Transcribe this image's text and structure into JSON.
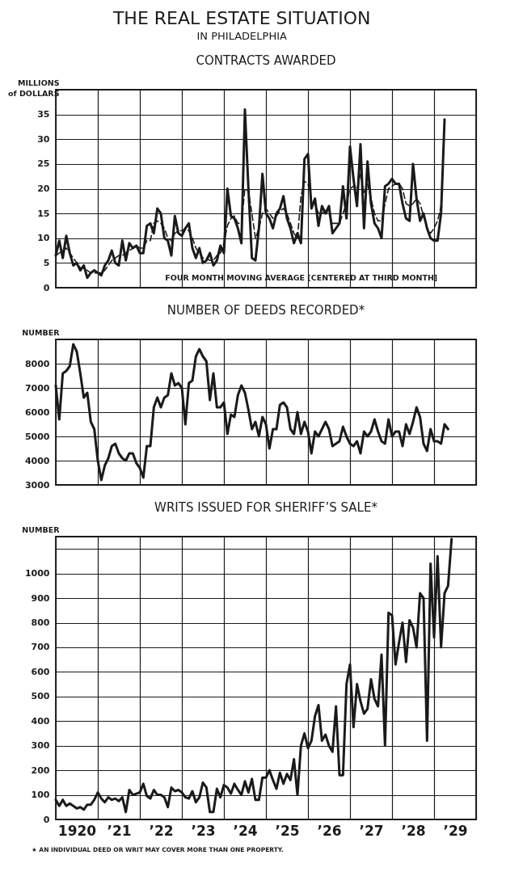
{
  "chart_data": [
    {
      "type": "line",
      "title": "CONTRACTS AWARDED",
      "ylabel": "MILLIONS of DOLLARS",
      "annotations": [
        "THE REAL ESTATE SITUATION",
        "IN PHILADELPHIA"
      ],
      "x": [
        "1920-01",
        "1920-02",
        "1920-03",
        "1920-04",
        "1920-05",
        "1920-06",
        "1920-07",
        "1920-08",
        "1920-09",
        "1920-10",
        "1920-11",
        "1920-12",
        "1921-01",
        "1921-02",
        "1921-03",
        "1921-04",
        "1921-05",
        "1921-06",
        "1921-07",
        "1921-08",
        "1921-09",
        "1921-10",
        "1921-11",
        "1921-12",
        "1922-01",
        "1922-02",
        "1922-03",
        "1922-04",
        "1922-05",
        "1922-06",
        "1922-07",
        "1922-08",
        "1922-09",
        "1922-10",
        "1922-11",
        "1922-12",
        "1923-01",
        "1923-02",
        "1923-03",
        "1923-04",
        "1923-05",
        "1923-06",
        "1923-07",
        "1923-08",
        "1923-09",
        "1923-10",
        "1923-11",
        "1923-12",
        "1924-01",
        "1924-02",
        "1924-03",
        "1924-04",
        "1924-05",
        "1924-06",
        "1924-07",
        "1924-08",
        "1924-09",
        "1924-10",
        "1924-11",
        "1924-12",
        "1925-01",
        "1925-02",
        "1925-03",
        "1925-04",
        "1925-05",
        "1925-06",
        "1925-07",
        "1925-08",
        "1925-09",
        "1925-10",
        "1925-11",
        "1925-12",
        "1926-01",
        "1926-02",
        "1926-03",
        "1926-04",
        "1926-05",
        "1926-06",
        "1926-07",
        "1926-08",
        "1926-09",
        "1926-10",
        "1926-11",
        "1926-12",
        "1927-01",
        "1927-02",
        "1927-03",
        "1927-04",
        "1927-05",
        "1927-06",
        "1927-07",
        "1927-08",
        "1927-09",
        "1927-10",
        "1927-11",
        "1927-12",
        "1928-01",
        "1928-02",
        "1928-03",
        "1928-04",
        "1928-05",
        "1928-06",
        "1928-07",
        "1928-08",
        "1928-09",
        "1928-10",
        "1928-11",
        "1928-12",
        "1929-01",
        "1929-02",
        "1929-03",
        "1929-04"
      ],
      "series": [
        {
          "color": "#1a1a1a",
          "line_style": "solid",
          "values": [
            6.5,
            9.5,
            6,
            10.5,
            7,
            4.5,
            5,
            3.5,
            4.5,
            2,
            3,
            3.5,
            3,
            2.5,
            4.5,
            5.5,
            7.5,
            5,
            4.5,
            9.5,
            5.5,
            9,
            8,
            8.5,
            7,
            7,
            12.5,
            13,
            11,
            16,
            15,
            10,
            9.5,
            6.5,
            14.5,
            11,
            10.5,
            12,
            13,
            8,
            6,
            8,
            5,
            5.5,
            7,
            4.5,
            5.5,
            8.5,
            7,
            20,
            14.5,
            14,
            12,
            9,
            36,
            20,
            6,
            5.5,
            12,
            23,
            15,
            14,
            12,
            15,
            16,
            18.5,
            14,
            12,
            9,
            11,
            9,
            26,
            27,
            16,
            18,
            12.5,
            16.5,
            15,
            16.5,
            11,
            12,
            13,
            20.5,
            14,
            28.5,
            22,
            16.5,
            29,
            12,
            25.5,
            17,
            13,
            12,
            10,
            20.5,
            21,
            22,
            21,
            21,
            17,
            14,
            13.5,
            25,
            18,
            13.5,
            15,
            12,
            10,
            9.5,
            9.5,
            15,
            34
          ]
        },
        {
          "name": "FOUR MONTH MOVING AVERAGE [CENTERED AT THIRD MONTH]",
          "color": "#1a1a1a",
          "line_style": "dashed",
          "values": [
            6.5,
            7,
            7.5,
            8,
            7,
            6,
            5,
            4,
            4,
            3.5,
            3,
            3,
            3,
            3,
            3.5,
            4.5,
            5.5,
            6,
            6.5,
            6.5,
            7,
            7.5,
            8,
            8.5,
            8,
            8,
            9.5,
            9.5,
            13,
            13.5,
            13,
            12,
            10,
            9.5,
            11,
            11.5,
            11.5,
            12,
            11.5,
            10,
            8,
            7,
            6,
            6,
            5.5,
            5.5,
            6.5,
            7,
            9,
            12.5,
            14,
            14.5,
            13,
            13,
            20,
            19.5,
            15,
            10,
            12,
            15,
            16,
            15,
            14,
            14.5,
            15.5,
            16,
            15,
            13,
            11,
            10,
            18.5,
            21.5,
            21,
            18,
            17,
            15,
            15,
            15.5,
            15,
            13,
            13,
            13,
            15,
            17,
            20,
            20.5,
            20,
            23,
            19,
            21,
            18,
            15,
            13.5,
            13.5,
            17,
            20,
            20.5,
            21,
            21,
            20,
            17,
            16.5,
            17,
            18,
            17,
            14.5,
            12,
            11,
            12,
            13.5,
            16.5,
            null
          ]
        }
      ],
      "xlim": [
        "1920-01",
        "1930-01"
      ],
      "xticks": [
        {
          "value": "1920-01",
          "label": null
        },
        {
          "value": "1921-01",
          "label": null
        },
        {
          "value": "1922-01",
          "label": null
        },
        {
          "value": "1923-01",
          "label": null
        },
        {
          "value": "1924-01",
          "label": null
        },
        {
          "value": "1925-01",
          "label": null
        },
        {
          "value": "1926-01",
          "label": null
        },
        {
          "value": "1927-01",
          "label": null
        },
        {
          "value": "1928-01",
          "label": null
        },
        {
          "value": "1929-01",
          "label": null
        },
        {
          "value": "1930-01",
          "label": null
        }
      ],
      "ylim": [
        0,
        40
      ],
      "yticks": [
        0,
        5,
        10,
        15,
        20,
        25,
        30,
        35
      ],
      "grid": true,
      "tick_labels": "y",
      "marker": "none"
    },
    {
      "type": "line",
      "title": "NUMBER OF DEEDS RECORDED*",
      "ylabel": "NUMBER",
      "x": [
        "1920-01",
        "1920-02",
        "1920-03",
        "1920-04",
        "1920-05",
        "1920-06",
        "1920-07",
        "1920-08",
        "1920-09",
        "1920-10",
        "1920-11",
        "1920-12",
        "1921-01",
        "1921-02",
        "1921-03",
        "1921-04",
        "1921-05",
        "1921-06",
        "1921-07",
        "1921-08",
        "1921-09",
        "1921-10",
        "1921-11",
        "1921-12",
        "1922-01",
        "1922-02",
        "1922-03",
        "1922-04",
        "1922-05",
        "1922-06",
        "1922-07",
        "1922-08",
        "1922-09",
        "1922-10",
        "1922-11",
        "1922-12",
        "1923-01",
        "1923-02",
        "1923-03",
        "1923-04",
        "1923-05",
        "1923-06",
        "1923-07",
        "1923-08",
        "1923-09",
        "1923-10",
        "1923-11",
        "1923-12",
        "1924-01",
        "1924-02",
        "1924-03",
        "1924-04",
        "1924-05",
        "1924-06",
        "1924-07",
        "1924-08",
        "1924-09",
        "1924-10",
        "1924-11",
        "1924-12",
        "1925-01",
        "1925-02",
        "1925-03",
        "1925-04",
        "1925-05",
        "1925-06",
        "1925-07",
        "1925-08",
        "1925-09",
        "1925-10",
        "1925-11",
        "1925-12",
        "1926-01",
        "1926-02",
        "1926-03",
        "1926-04",
        "1926-05",
        "1926-06",
        "1926-07",
        "1926-08",
        "1926-09",
        "1926-10",
        "1926-11",
        "1926-12",
        "1927-01",
        "1927-02",
        "1927-03",
        "1927-04",
        "1927-05",
        "1927-06",
        "1927-07",
        "1927-08",
        "1927-09",
        "1927-10",
        "1927-11",
        "1927-12",
        "1928-01",
        "1928-02",
        "1928-03",
        "1928-04",
        "1928-05",
        "1928-06",
        "1928-07",
        "1928-08",
        "1928-09",
        "1928-10",
        "1928-11",
        "1928-12",
        "1929-01",
        "1929-02",
        "1929-03",
        "1929-04",
        "1929-05"
      ],
      "series": [
        {
          "color": "#1a1a1a",
          "line_style": "solid",
          "values": [
            7100,
            5700,
            7600,
            7700,
            7900,
            8800,
            8500,
            7600,
            6600,
            6800,
            5600,
            5300,
            4000,
            3200,
            3800,
            4100,
            4600,
            4700,
            4300,
            4100,
            4000,
            4300,
            4300,
            3900,
            3700,
            3300,
            4600,
            4600,
            6200,
            6600,
            6200,
            6600,
            6700,
            7600,
            7100,
            7200,
            7000,
            5500,
            7200,
            7300,
            8300,
            8600,
            8300,
            8100,
            6500,
            7600,
            6200,
            6200,
            6400,
            5100,
            5900,
            5800,
            6700,
            7100,
            6800,
            6100,
            5300,
            5600,
            5000,
            5800,
            5500,
            4500,
            5300,
            5300,
            6300,
            6400,
            6200,
            5300,
            5100,
            6000,
            5100,
            5600,
            5200,
            4300,
            5200,
            5000,
            5300,
            5600,
            5300,
            4600,
            4700,
            4800,
            5400,
            5000,
            4700,
            4600,
            4800,
            4300,
            5200,
            5000,
            5200,
            5700,
            5200,
            4800,
            4700,
            5700,
            5000,
            5200,
            5200,
            4600,
            5500,
            5100,
            5600,
            6200,
            5800,
            4700,
            4400,
            5300,
            4800,
            4800,
            4700,
            5500,
            5300
          ]
        }
      ],
      "xlim": [
        "1920-01",
        "1930-01"
      ],
      "xticks": [
        {
          "value": "1920-01",
          "label": null
        },
        {
          "value": "1921-01",
          "label": null
        },
        {
          "value": "1922-01",
          "label": null
        },
        {
          "value": "1923-01",
          "label": null
        },
        {
          "value": "1924-01",
          "label": null
        },
        {
          "value": "1925-01",
          "label": null
        },
        {
          "value": "1926-01",
          "label": null
        },
        {
          "value": "1927-01",
          "label": null
        },
        {
          "value": "1928-01",
          "label": null
        },
        {
          "value": "1929-01",
          "label": null
        },
        {
          "value": "1930-01",
          "label": null
        }
      ],
      "ylim": [
        3000,
        9000
      ],
      "yticks": [
        3000,
        4000,
        5000,
        6000,
        7000,
        8000
      ],
      "grid": true,
      "tick_labels": "y",
      "marker": "none"
    },
    {
      "type": "line",
      "title": "WRITS ISSUED FOR SHERIFF’S SALE*",
      "ylabel": "NUMBER",
      "annotations": [
        "★ AN INDIVIDUAL DEED OR WRIT MAY COVER MORE THAN ONE PROPERTY."
      ],
      "x": [
        "1920-01",
        "1920-02",
        "1920-03",
        "1920-04",
        "1920-05",
        "1920-06",
        "1920-07",
        "1920-08",
        "1920-09",
        "1920-10",
        "1920-11",
        "1920-12",
        "1921-01",
        "1921-02",
        "1921-03",
        "1921-04",
        "1921-05",
        "1921-06",
        "1921-07",
        "1921-08",
        "1921-09",
        "1921-10",
        "1921-11",
        "1921-12",
        "1922-01",
        "1922-02",
        "1922-03",
        "1922-04",
        "1922-05",
        "1922-06",
        "1922-07",
        "1922-08",
        "1922-09",
        "1922-10",
        "1922-11",
        "1922-12",
        "1923-01",
        "1923-02",
        "1923-03",
        "1923-04",
        "1923-05",
        "1923-06",
        "1923-07",
        "1923-08",
        "1923-09",
        "1923-10",
        "1923-11",
        "1923-12",
        "1924-01",
        "1924-02",
        "1924-03",
        "1924-04",
        "1924-05",
        "1924-06",
        "1924-07",
        "1924-08",
        "1924-09",
        "1924-10",
        "1924-11",
        "1924-12",
        "1925-01",
        "1925-02",
        "1925-03",
        "1925-04",
        "1925-05",
        "1925-06",
        "1925-07",
        "1925-08",
        "1925-09",
        "1925-10",
        "1925-11",
        "1925-12",
        "1926-01",
        "1926-02",
        "1926-03",
        "1926-04",
        "1926-05",
        "1926-06",
        "1926-07",
        "1926-08",
        "1926-09",
        "1926-10",
        "1926-11",
        "1926-12",
        "1927-01",
        "1927-02",
        "1927-03",
        "1927-04",
        "1927-05",
        "1927-06",
        "1927-07",
        "1927-08",
        "1927-09",
        "1927-10",
        "1927-11",
        "1927-12",
        "1928-01",
        "1928-02",
        "1928-03",
        "1928-04",
        "1928-05",
        "1928-06",
        "1928-07",
        "1928-08",
        "1928-09",
        "1928-10",
        "1928-11",
        "1928-12",
        "1929-01",
        "1929-02",
        "1929-03",
        "1929-04",
        "1929-05",
        "1929-06"
      ],
      "series": [
        {
          "color": "#1a1a1a",
          "line_style": "solid",
          "values": [
            80,
            55,
            80,
            55,
            65,
            55,
            45,
            50,
            40,
            60,
            60,
            80,
            110,
            85,
            70,
            90,
            80,
            85,
            75,
            90,
            30,
            120,
            100,
            105,
            110,
            145,
            95,
            85,
            120,
            100,
            100,
            90,
            50,
            130,
            115,
            120,
            110,
            90,
            85,
            115,
            70,
            90,
            150,
            130,
            30,
            30,
            125,
            90,
            140,
            130,
            105,
            145,
            120,
            100,
            155,
            110,
            165,
            80,
            80,
            170,
            170,
            200,
            160,
            125,
            190,
            145,
            185,
            160,
            245,
            100,
            300,
            350,
            290,
            320,
            420,
            465,
            320,
            345,
            300,
            275,
            460,
            180,
            180,
            550,
            630,
            375,
            550,
            480,
            430,
            450,
            570,
            490,
            460,
            670,
            300,
            840,
            830,
            630,
            720,
            800,
            640,
            810,
            780,
            700,
            920,
            900,
            320,
            1040,
            740,
            1070,
            700,
            920,
            950,
            1140
          ]
        }
      ],
      "xlim": [
        "1920-01",
        "1930-01"
      ],
      "xticks": [
        {
          "value": "1920-01",
          "label": null
        },
        {
          "value": "1920-07",
          "label": "1920"
        },
        {
          "value": "1921-01",
          "label": null
        },
        {
          "value": "1921-07",
          "label": "’21"
        },
        {
          "value": "1922-01",
          "label": null
        },
        {
          "value": "1922-07",
          "label": "’22"
        },
        {
          "value": "1923-01",
          "label": null
        },
        {
          "value": "1923-07",
          "label": "’23"
        },
        {
          "value": "1924-01",
          "label": null
        },
        {
          "value": "1924-07",
          "label": "’24"
        },
        {
          "value": "1925-01",
          "label": null
        },
        {
          "value": "1925-07",
          "label": "’25"
        },
        {
          "value": "1926-01",
          "label": null
        },
        {
          "value": "1926-07",
          "label": "’26"
        },
        {
          "value": "1927-01",
          "label": null
        },
        {
          "value": "1927-07",
          "label": "’27"
        },
        {
          "value": "1928-01",
          "label": null
        },
        {
          "value": "1928-07",
          "label": "’28"
        },
        {
          "value": "1929-01",
          "label": null
        },
        {
          "value": "1929-07",
          "label": "’29"
        },
        {
          "value": "1930-01",
          "label": null
        }
      ],
      "ylim": [
        0,
        1150
      ],
      "yticks": [
        0,
        100,
        200,
        300,
        400,
        500,
        600,
        700,
        800,
        900,
        1000,
        {
          "value": 1100,
          "label": null
        }
      ],
      "grid": true,
      "marker": "none"
    }
  ]
}
